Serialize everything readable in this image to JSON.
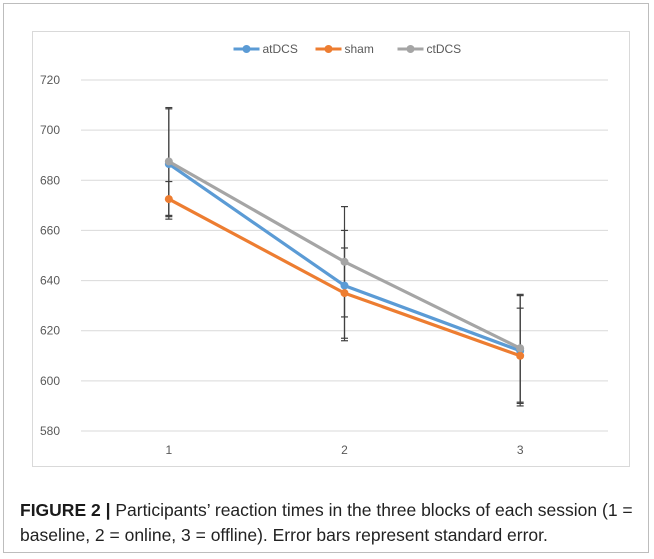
{
  "chart_data": {
    "type": "line",
    "categories": [
      "1",
      "2",
      "3"
    ],
    "ylim": [
      580,
      720
    ],
    "yticks": [
      580,
      600,
      620,
      640,
      660,
      680,
      700,
      720
    ],
    "grid": true,
    "legend_position": "top-center",
    "series": [
      {
        "name": "atDCS",
        "color": "#5b9bd5",
        "values": [
          686.5,
          638,
          612
        ],
        "errors": [
          22,
          22,
          22
        ]
      },
      {
        "name": "sham",
        "color": "#ed7d31",
        "values": [
          672.5,
          635,
          610
        ],
        "errors": [
          7,
          18,
          19
        ]
      },
      {
        "name": "ctDCS",
        "color": "#a5a5a5",
        "values": [
          687.5,
          647.5,
          613
        ],
        "errors": [
          21.5,
          22,
          21.5
        ]
      }
    ]
  },
  "caption": {
    "label": "FIGURE 2 |",
    "text": " Participants’ reaction times in the three blocks of each session (1 = baseline, 2 = online, 3 = offline). Error bars represent standard error."
  }
}
